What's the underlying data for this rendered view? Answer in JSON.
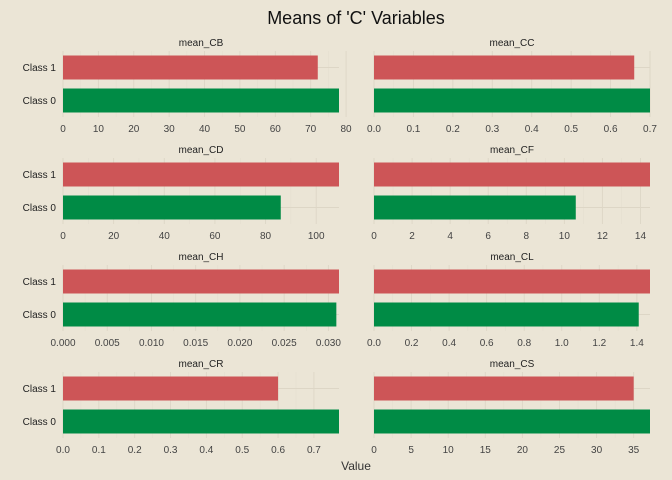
{
  "chart_data": {
    "type": "bar",
    "orientation": "horizontal",
    "title": "Means of 'C' Variables",
    "xlabel": "Value",
    "ylabel": "",
    "categories": [
      "Class 1",
      "Class 0"
    ],
    "colors": {
      "Class 1": "#cd5557",
      "Class 0": "#008b45",
      "background": "#ebe5d6"
    },
    "grid": true,
    "legend": "none",
    "facets": [
      {
        "name": "mean_CB",
        "values": {
          "Class 1": 72.0,
          "Class 0": 78.0
        },
        "xlim": [
          0,
          78.0
        ],
        "ticks": [
          0,
          10,
          20,
          30,
          40,
          50,
          60,
          70,
          80
        ],
        "tick_labels": [
          "0",
          "10",
          "20",
          "30",
          "40",
          "50",
          "60",
          "70",
          "80"
        ]
      },
      {
        "name": "mean_CC",
        "values": {
          "Class 1": 0.66,
          "Class 0": 0.7
        },
        "xlim": [
          0,
          0.7
        ],
        "ticks": [
          0,
          0.1,
          0.2,
          0.3,
          0.4,
          0.5,
          0.6,
          0.7
        ],
        "tick_labels": [
          "0.0",
          "0.1",
          "0.2",
          "0.3",
          "0.4",
          "0.5",
          "0.6",
          "0.7"
        ]
      },
      {
        "name": "mean_CD",
        "values": {
          "Class 1": 109.0,
          "Class 0": 86.0
        },
        "xlim": [
          0,
          109.0
        ],
        "ticks": [
          0,
          20,
          40,
          60,
          80,
          100
        ],
        "tick_labels": [
          "0",
          "20",
          "40",
          "60",
          "80",
          "100"
        ]
      },
      {
        "name": "mean_CF",
        "values": {
          "Class 1": 14.5,
          "Class 0": 10.6
        },
        "xlim": [
          0,
          14.5
        ],
        "ticks": [
          0,
          2,
          4,
          6,
          8,
          10,
          12,
          14
        ],
        "tick_labels": [
          "0",
          "2",
          "4",
          "6",
          "8",
          "10",
          "12",
          "14"
        ]
      },
      {
        "name": "mean_CH",
        "values": {
          "Class 1": 0.0312,
          "Class 0": 0.0309
        },
        "xlim": [
          0,
          0.0312
        ],
        "ticks": [
          0,
          0.005,
          0.01,
          0.015,
          0.02,
          0.025,
          0.03
        ],
        "tick_labels": [
          "0.000",
          "0.005",
          "0.010",
          "0.015",
          "0.020",
          "0.025",
          "0.030"
        ]
      },
      {
        "name": "mean_CL",
        "values": {
          "Class 1": 1.47,
          "Class 0": 1.41
        },
        "xlim": [
          0,
          1.47
        ],
        "ticks": [
          0,
          0.2,
          0.4,
          0.6,
          0.8,
          1.0,
          1.2,
          1.4
        ],
        "tick_labels": [
          "0.0",
          "0.2",
          "0.4",
          "0.6",
          "0.8",
          "1.0",
          "1.2",
          "1.4"
        ]
      },
      {
        "name": "mean_CR",
        "values": {
          "Class 1": 0.6,
          "Class 0": 0.77
        },
        "xlim": [
          0,
          0.77
        ],
        "ticks": [
          0,
          0.1,
          0.2,
          0.3,
          0.4,
          0.5,
          0.6,
          0.7
        ],
        "tick_labels": [
          "0.0",
          "0.1",
          "0.2",
          "0.3",
          "0.4",
          "0.5",
          "0.6",
          "0.7"
        ]
      },
      {
        "name": "mean_CS",
        "values": {
          "Class 1": 35.0,
          "Class 0": 37.2
        },
        "xlim": [
          0,
          37.2
        ],
        "ticks": [
          0,
          5,
          10,
          15,
          20,
          25,
          30,
          35
        ],
        "tick_labels": [
          "0",
          "5",
          "10",
          "15",
          "20",
          "25",
          "30",
          "35"
        ]
      }
    ]
  }
}
